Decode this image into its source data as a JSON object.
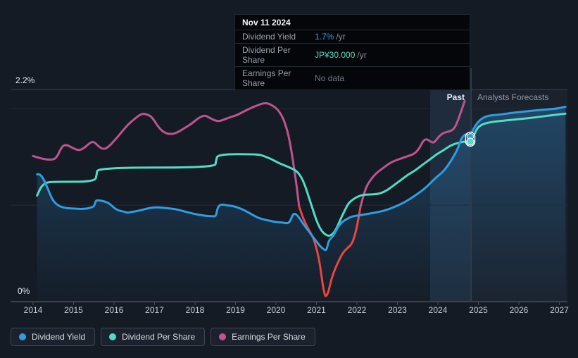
{
  "tooltip": {
    "date": "Nov 11 2024",
    "rows": [
      {
        "label": "Dividend Yield",
        "value": "1.7%",
        "suffix": "/yr",
        "value_color": "#2e9de4"
      },
      {
        "label": "Dividend Per Share",
        "value": "JP¥30.000",
        "suffix": "/yr",
        "value_color": "#50dcc5"
      },
      {
        "label": "Earnings Per Share",
        "value": "No data",
        "suffix": "",
        "value_color": "#6e7680"
      }
    ]
  },
  "annotations": {
    "past_label": "Past",
    "forecast_label": "Analysts Forecasts"
  },
  "y_axis": {
    "top_label": "2.2%",
    "bottom_label": "0%"
  },
  "legend": {
    "items": [
      {
        "label": "Dividend Yield",
        "color": "#2e9de4"
      },
      {
        "label": "Dividend Per Share",
        "color": "#4fdcc5"
      },
      {
        "label": "Earnings Per Share",
        "color": "#c9518f"
      }
    ]
  },
  "colors": {
    "background": "#151b25",
    "dividend_yield": "#2e9de4",
    "dividend_per_share": "#50dcc5",
    "earnings_per_share": "#c0538f",
    "earnings_negative": "#e9463e",
    "grid_top": "#3a424f",
    "grid_minor": "#262d38",
    "axis": "#454f5d",
    "divider": "#2f3b4a",
    "highlight_band": "rgba(96,164,226,0.13)",
    "forecast_overlay": "rgba(148,170,196,0.055)"
  },
  "chart_data": {
    "type": "line",
    "y_axis": {
      "unit": "%",
      "range": [
        0,
        2.2
      ],
      "gridline_values": [
        2.2,
        2.0,
        1.0,
        0
      ]
    },
    "x_axis": {
      "years": [
        "2014",
        "2015",
        "2016",
        "2017",
        "2018",
        "2019",
        "2020",
        "2021",
        "2022",
        "2023",
        "2024",
        "2025",
        "2026",
        "2027"
      ]
    },
    "past_forecast_split": 2024.82,
    "highlight_band": {
      "from": 2023.81,
      "to": 2024.82
    },
    "marker_date": "Nov 11 2024",
    "series": [
      {
        "name": "Dividend Yield",
        "color": "#2e9de4",
        "area": true,
        "marker": {
          "year": 2024.8,
          "value": 1.71
        },
        "points": [
          [
            2014.1,
            1.32
          ],
          [
            2014.17,
            1.33
          ],
          [
            2014.3,
            1.24
          ],
          [
            2014.4,
            1.13
          ],
          [
            2014.5,
            1.04
          ],
          [
            2014.64,
            0.99
          ],
          [
            2014.8,
            0.97
          ],
          [
            2015.01,
            0.965
          ],
          [
            2015.18,
            0.96
          ],
          [
            2015.34,
            0.965
          ],
          [
            2015.46,
            0.98
          ],
          [
            2015.51,
            0.99
          ],
          [
            2015.55,
            1.05
          ],
          [
            2015.63,
            1.05
          ],
          [
            2015.76,
            1.04
          ],
          [
            2015.88,
            1.02
          ],
          [
            2016.02,
            0.965
          ],
          [
            2016.14,
            0.94
          ],
          [
            2016.24,
            0.935
          ],
          [
            2016.33,
            0.92
          ],
          [
            2016.42,
            0.93
          ],
          [
            2016.59,
            0.94
          ],
          [
            2016.8,
            0.965
          ],
          [
            2017.04,
            0.98
          ],
          [
            2017.29,
            0.97
          ],
          [
            2017.53,
            0.96
          ],
          [
            2017.74,
            0.935
          ],
          [
            2017.98,
            0.91
          ],
          [
            2018.23,
            0.89
          ],
          [
            2018.45,
            0.885
          ],
          [
            2018.52,
            0.885
          ],
          [
            2018.56,
            0.98
          ],
          [
            2018.64,
            1.01
          ],
          [
            2018.78,
            1.0
          ],
          [
            2018.96,
            0.99
          ],
          [
            2019.13,
            0.965
          ],
          [
            2019.3,
            0.93
          ],
          [
            2019.48,
            0.885
          ],
          [
            2019.65,
            0.855
          ],
          [
            2019.83,
            0.84
          ],
          [
            2020.0,
            0.825
          ],
          [
            2020.17,
            0.82
          ],
          [
            2020.31,
            0.81
          ],
          [
            2020.37,
            0.855
          ],
          [
            2020.42,
            0.905
          ],
          [
            2020.47,
            0.915
          ],
          [
            2020.56,
            0.88
          ],
          [
            2020.68,
            0.8
          ],
          [
            2020.83,
            0.72
          ],
          [
            2020.97,
            0.64
          ],
          [
            2021.1,
            0.57
          ],
          [
            2021.2,
            0.535
          ],
          [
            2021.25,
            0.535
          ],
          [
            2021.29,
            0.61
          ],
          [
            2021.32,
            0.64
          ],
          [
            2021.43,
            0.69
          ],
          [
            2021.53,
            0.775
          ],
          [
            2021.63,
            0.825
          ],
          [
            2021.76,
            0.86
          ],
          [
            2021.88,
            0.885
          ],
          [
            2022.14,
            0.9
          ],
          [
            2022.4,
            0.92
          ],
          [
            2022.66,
            0.94
          ],
          [
            2022.92,
            0.98
          ],
          [
            2023.18,
            1.03
          ],
          [
            2023.44,
            1.1
          ],
          [
            2023.7,
            1.18
          ],
          [
            2023.93,
            1.28
          ],
          [
            2024.14,
            1.35
          ],
          [
            2024.31,
            1.45
          ],
          [
            2024.49,
            1.58
          ],
          [
            2024.57,
            1.69
          ],
          [
            2024.66,
            1.73
          ],
          [
            2024.71,
            1.74
          ],
          [
            2024.8,
            1.71
          ],
          [
            2024.85,
            1.77
          ],
          [
            2024.94,
            1.835
          ],
          [
            2025.04,
            1.885
          ],
          [
            2025.15,
            1.915
          ],
          [
            2025.27,
            1.93
          ],
          [
            2025.53,
            1.94
          ],
          [
            2025.88,
            1.96
          ],
          [
            2026.23,
            1.975
          ],
          [
            2026.57,
            1.99
          ],
          [
            2026.92,
            2.0
          ],
          [
            2027.15,
            2.02
          ]
        ]
      },
      {
        "name": "Dividend Per Share",
        "color": "#50dcc5",
        "marker": {
          "year": 2024.8,
          "value": 1.66
        },
        "points": [
          [
            2014.1,
            1.1
          ],
          [
            2014.17,
            1.17
          ],
          [
            2014.24,
            1.21
          ],
          [
            2014.33,
            1.235
          ],
          [
            2014.49,
            1.243
          ],
          [
            2015.53,
            1.243
          ],
          [
            2015.57,
            1.32
          ],
          [
            2015.6,
            1.39
          ],
          [
            2018.49,
            1.39
          ],
          [
            2018.52,
            1.46
          ],
          [
            2018.56,
            1.53
          ],
          [
            2019.55,
            1.53
          ],
          [
            2019.7,
            1.51
          ],
          [
            2019.88,
            1.48
          ],
          [
            2020.05,
            1.44
          ],
          [
            2020.23,
            1.41
          ],
          [
            2020.4,
            1.38
          ],
          [
            2020.52,
            1.35
          ],
          [
            2020.63,
            1.29
          ],
          [
            2020.73,
            1.19
          ],
          [
            2020.83,
            1.06
          ],
          [
            2020.96,
            0.89
          ],
          [
            2021.04,
            0.8
          ],
          [
            2021.13,
            0.73
          ],
          [
            2021.22,
            0.695
          ],
          [
            2021.3,
            0.68
          ],
          [
            2021.39,
            0.695
          ],
          [
            2021.48,
            0.745
          ],
          [
            2021.58,
            0.84
          ],
          [
            2021.69,
            0.94
          ],
          [
            2021.79,
            1.02
          ],
          [
            2021.9,
            1.06
          ],
          [
            2022.02,
            1.09
          ],
          [
            2022.16,
            1.11
          ],
          [
            2022.37,
            1.11
          ],
          [
            2022.57,
            1.12
          ],
          [
            2022.75,
            1.155
          ],
          [
            2022.92,
            1.21
          ],
          [
            2023.1,
            1.265
          ],
          [
            2023.27,
            1.32
          ],
          [
            2023.44,
            1.36
          ],
          [
            2023.62,
            1.42
          ],
          [
            2023.79,
            1.47
          ],
          [
            2023.97,
            1.53
          ],
          [
            2024.14,
            1.57
          ],
          [
            2024.31,
            1.62
          ],
          [
            2024.49,
            1.645
          ],
          [
            2024.63,
            1.66
          ],
          [
            2024.8,
            1.66
          ],
          [
            2024.89,
            1.725
          ],
          [
            2024.97,
            1.8
          ],
          [
            2025.08,
            1.835
          ],
          [
            2025.18,
            1.85
          ],
          [
            2025.36,
            1.865
          ],
          [
            2025.7,
            1.88
          ],
          [
            2026.05,
            1.895
          ],
          [
            2026.4,
            1.91
          ],
          [
            2026.75,
            1.93
          ],
          [
            2027.15,
            1.95
          ]
        ]
      },
      {
        "name": "Earnings Per Share",
        "segments": [
          {
            "color": "#c0538f",
            "points": [
              [
                2014.0,
                1.51
              ],
              [
                2014.19,
                1.485
              ],
              [
                2014.4,
                1.47
              ],
              [
                2014.57,
                1.48
              ],
              [
                2014.71,
                1.61
              ],
              [
                2014.82,
                1.63
              ],
              [
                2014.97,
                1.595
              ],
              [
                2015.13,
                1.565
              ],
              [
                2015.27,
                1.595
              ],
              [
                2015.41,
                1.65
              ],
              [
                2015.5,
                1.66
              ],
              [
                2015.62,
                1.61
              ],
              [
                2015.72,
                1.58
              ],
              [
                2015.84,
                1.595
              ],
              [
                2016.02,
                1.675
              ],
              [
                2016.17,
                1.75
              ],
              [
                2016.33,
                1.83
              ],
              [
                2016.52,
                1.9
              ],
              [
                2016.68,
                1.95
              ],
              [
                2016.8,
                1.945
              ],
              [
                2016.94,
                1.915
              ],
              [
                2017.11,
                1.8
              ],
              [
                2017.25,
                1.75
              ],
              [
                2017.41,
                1.735
              ],
              [
                2017.57,
                1.755
              ],
              [
                2017.74,
                1.8
              ],
              [
                2017.9,
                1.84
              ],
              [
                2018.07,
                1.9
              ],
              [
                2018.23,
                1.935
              ],
              [
                2018.35,
                1.91
              ],
              [
                2018.47,
                1.88
              ],
              [
                2018.61,
                1.87
              ],
              [
                2018.75,
                1.895
              ],
              [
                2018.89,
                1.915
              ],
              [
                2019.04,
                1.935
              ],
              [
                2019.22,
                1.975
              ],
              [
                2019.39,
                2.01
              ],
              [
                2019.57,
                2.04
              ],
              [
                2019.7,
                2.06
              ],
              [
                2019.81,
                2.055
              ],
              [
                2019.93,
                2.03
              ],
              [
                2020.05,
                1.99
              ],
              [
                2020.17,
                1.91
              ],
              [
                2020.28,
                1.78
              ],
              [
                2020.37,
                1.595
              ],
              [
                2020.45,
                1.375
              ],
              [
                2020.52,
                1.17
              ],
              [
                2020.57,
                0.99
              ]
            ]
          },
          {
            "color": "#e9463e",
            "points": [
              [
                2020.57,
                0.99
              ],
              [
                2020.64,
                0.9
              ],
              [
                2020.73,
                0.81
              ],
              [
                2020.83,
                0.73
              ],
              [
                2020.92,
                0.665
              ],
              [
                2020.99,
                0.57
              ],
              [
                2021.06,
                0.45
              ],
              [
                2021.11,
                0.31
              ],
              [
                2021.16,
                0.16
              ],
              [
                2021.2,
                0.08
              ],
              [
                2021.23,
                0.05
              ],
              [
                2021.29,
                0.09
              ],
              [
                2021.36,
                0.22
              ],
              [
                2021.44,
                0.32
              ],
              [
                2021.55,
                0.425
              ],
              [
                2021.65,
                0.505
              ],
              [
                2021.76,
                0.555
              ],
              [
                2021.86,
                0.59
              ],
              [
                2021.93,
                0.66
              ],
              [
                2022.0,
                0.775
              ],
              [
                2022.05,
                0.89
              ],
              [
                2022.09,
                0.99
              ]
            ]
          },
          {
            "color": "#c0538f",
            "points": [
              [
                2022.09,
                0.99
              ],
              [
                2022.16,
                1.1
              ],
              [
                2022.24,
                1.2
              ],
              [
                2022.35,
                1.27
              ],
              [
                2022.47,
                1.33
              ],
              [
                2022.63,
                1.38
              ],
              [
                2022.77,
                1.425
              ],
              [
                2022.92,
                1.46
              ],
              [
                2023.1,
                1.485
              ],
              [
                2023.27,
                1.51
              ],
              [
                2023.43,
                1.535
              ],
              [
                2023.55,
                1.595
              ],
              [
                2023.63,
                1.665
              ],
              [
                2023.72,
                1.69
              ],
              [
                2023.81,
                1.66
              ],
              [
                2023.9,
                1.645
              ],
              [
                2023.98,
                1.69
              ],
              [
                2024.09,
                1.74
              ],
              [
                2024.21,
                1.76
              ],
              [
                2024.33,
                1.77
              ],
              [
                2024.42,
                1.805
              ],
              [
                2024.5,
                1.885
              ],
              [
                2024.59,
                1.99
              ],
              [
                2024.66,
                2.08
              ]
            ]
          }
        ]
      }
    ]
  }
}
